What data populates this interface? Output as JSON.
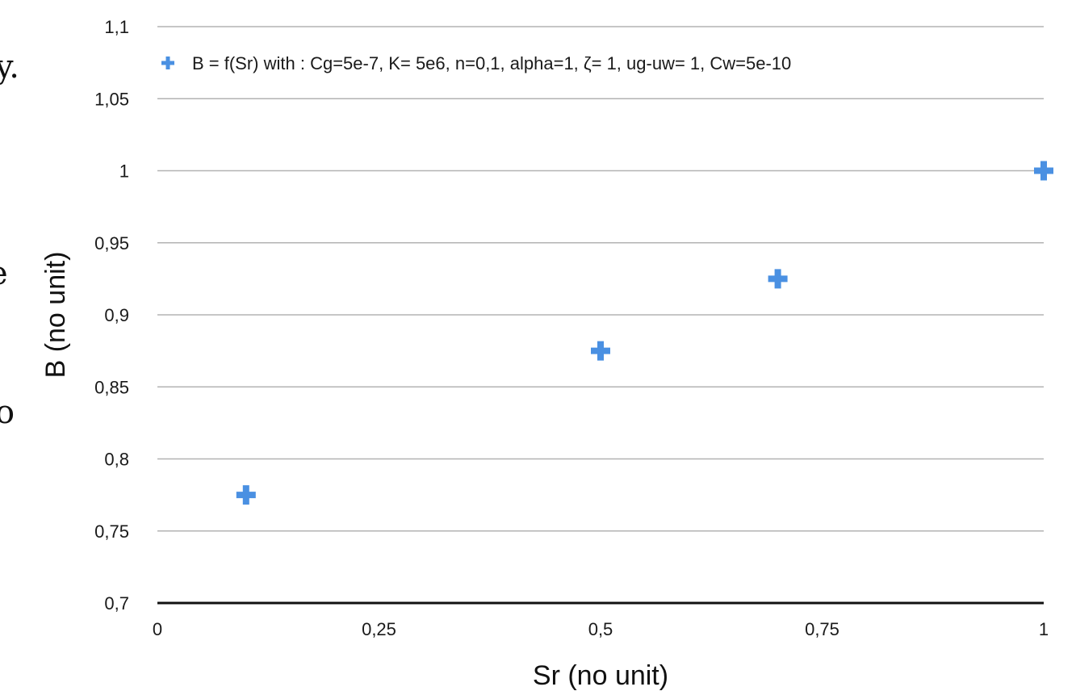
{
  "background_text": {
    "fragment_top": "y.",
    "fragment_mid": "e",
    "fragment_low": "o"
  },
  "chart_data": {
    "type": "scatter",
    "xlabel": "Sr (no unit)",
    "ylabel": "B (no unit)",
    "xlim": [
      0,
      1
    ],
    "ylim": [
      0.7,
      1.1
    ],
    "x_ticks": [
      0,
      0.25,
      0.5,
      0.75,
      1
    ],
    "x_tick_labels": [
      "0",
      "0,25",
      "0,5",
      "0,75",
      "1"
    ],
    "y_ticks": [
      0.7,
      0.75,
      0.8,
      0.85,
      0.9,
      0.95,
      1,
      1.05,
      1.1
    ],
    "y_tick_labels": [
      "0,7",
      "0,75",
      "0,8",
      "0,85",
      "0,9",
      "0,95",
      "1",
      "1,05",
      "1,1"
    ],
    "grid": true,
    "legend_position": "top",
    "series": [
      {
        "name": "B = f(Sr) with : Cg=5e-7, K= 5e6, n=0,1, alpha=1, ζ= 1,  ug-uw= 1, Cw=5e-10",
        "marker": "plus",
        "color": "#4a90e2",
        "points": [
          {
            "x": 0.1,
            "y": 0.775
          },
          {
            "x": 0.5,
            "y": 0.875
          },
          {
            "x": 0.7,
            "y": 0.925
          },
          {
            "x": 1.0,
            "y": 1.0
          }
        ]
      }
    ]
  }
}
